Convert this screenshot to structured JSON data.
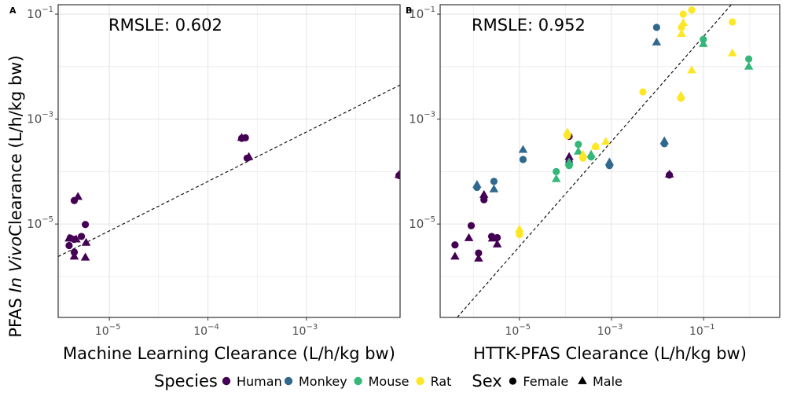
{
  "figure": {
    "y_label_prefix": "PFAS ",
    "y_label_italic": "In Vivo",
    "y_label_suffix": "Clearance (L/h/kg bw)"
  },
  "legend": {
    "species_title": "Species",
    "species": [
      {
        "label": "Human",
        "color": "#440154"
      },
      {
        "label": "Monkey",
        "color": "#31688e"
      },
      {
        "label": "Mouse",
        "color": "#35b779"
      },
      {
        "label": "Rat",
        "color": "#fde725"
      }
    ],
    "sex_title": "Sex",
    "sex": [
      {
        "label": "Female",
        "shape": "circle"
      },
      {
        "label": "Male",
        "shape": "triangle"
      }
    ]
  },
  "chart_data": [
    {
      "type": "scatter",
      "panel": "A",
      "annotation": "RMSLE: 0.602",
      "xlabel": "Machine Learning Clearance (L/h/kg bw)",
      "xscale": "log10",
      "yscale": "log10",
      "xlim_log10": [
        -5.52,
        -2.05
      ],
      "ylim_log10": [
        -6.78,
        -0.82
      ],
      "x_ticks": [
        "10^-5",
        "10^-4",
        "10^-3"
      ],
      "y_ticks": [
        "10^-5",
        "10^-3",
        "10^-1"
      ],
      "grid": true,
      "fit_line_log10": {
        "x": [
          -5.52,
          -2.05
        ],
        "y": [
          -5.62,
          -2.35
        ]
      },
      "points": [
        {
          "x": 4e-06,
          "y": 5.4e-06,
          "species": "Human",
          "sex": "Female"
        },
        {
          "x": 4.4e-06,
          "y": 5.1e-06,
          "species": "Human",
          "sex": "Female"
        },
        {
          "x": 3.9e-06,
          "y": 3.9e-06,
          "species": "Human",
          "sex": "Female"
        },
        {
          "x": 4.4e-06,
          "y": 2.9e-06,
          "species": "Human",
          "sex": "Female"
        },
        {
          "x": 5.2e-06,
          "y": 5.8e-06,
          "species": "Human",
          "sex": "Female"
        },
        {
          "x": 5.7e-06,
          "y": 9.8e-06,
          "species": "Human",
          "sex": "Female"
        },
        {
          "x": 4.4e-06,
          "y": 2.8e-05,
          "species": "Human",
          "sex": "Female"
        },
        {
          "x": 0.00022,
          "y": 0.00043,
          "species": "Human",
          "sex": "Female"
        },
        {
          "x": 0.00024,
          "y": 0.00044,
          "species": "Human",
          "sex": "Female"
        },
        {
          "x": 0.0087,
          "y": 8.4e-05,
          "species": "Human",
          "sex": "Female"
        },
        {
          "x": 0.00025,
          "y": 0.00018,
          "species": "Human",
          "sex": "Female"
        },
        {
          "x": 3.9e-06,
          "y": 5.3e-06,
          "species": "Human",
          "sex": "Male"
        },
        {
          "x": 4.6e-06,
          "y": 5.1e-06,
          "species": "Human",
          "sex": "Male"
        },
        {
          "x": 4.4e-06,
          "y": 2.4e-06,
          "species": "Human",
          "sex": "Male"
        },
        {
          "x": 5.7e-06,
          "y": 2.3e-06,
          "species": "Human",
          "sex": "Male"
        },
        {
          "x": 5.8e-06,
          "y": 4.4e-06,
          "species": "Human",
          "sex": "Male"
        },
        {
          "x": 4.8e-06,
          "y": 3.3e-05,
          "species": "Human",
          "sex": "Male"
        },
        {
          "x": 0.00022,
          "y": 0.00044,
          "species": "Human",
          "sex": "Male"
        },
        {
          "x": 0.00026,
          "y": 0.00019,
          "species": "Human",
          "sex": "Male"
        },
        {
          "x": 0.0087,
          "y": 8.6e-05,
          "species": "Human",
          "sex": "Male"
        }
      ]
    },
    {
      "type": "scatter",
      "panel": "B",
      "annotation": "RMSLE: 0.952",
      "xlabel": "HTTK-PFAS Clearance (L/h/kg bw)",
      "xscale": "log10",
      "yscale": "log10",
      "xlim_log10": [
        -6.72,
        0.65
      ],
      "ylim_log10": [
        -6.78,
        -0.82
      ],
      "x_ticks": [
        "10^-5",
        "10^-3",
        "10^-1"
      ],
      "y_ticks": [
        "10^-5",
        "10^-3",
        "10^-1"
      ],
      "grid": true,
      "fit_line_log10": {
        "x": [
          -6.35,
          -0.4
        ],
        "y": [
          -6.78,
          -0.82
        ]
      },
      "points": [
        {
          "x": 4e-07,
          "y": 4e-06,
          "species": "Human",
          "sex": "Female"
        },
        {
          "x": 9e-07,
          "y": 9.3e-06,
          "species": "Human",
          "sex": "Female"
        },
        {
          "x": 1.3e-06,
          "y": 2.8e-06,
          "species": "Human",
          "sex": "Female"
        },
        {
          "x": 1.7e-06,
          "y": 2.9e-05,
          "species": "Human",
          "sex": "Female"
        },
        {
          "x": 2.5e-06,
          "y": 5.8e-06,
          "species": "Human",
          "sex": "Female"
        },
        {
          "x": 3.3e-06,
          "y": 5.5e-06,
          "species": "Human",
          "sex": "Female"
        },
        {
          "x": 0.00012,
          "y": 0.00047,
          "species": "Human",
          "sex": "Female"
        },
        {
          "x": 0.018,
          "y": 8.6e-05,
          "species": "Human",
          "sex": "Female"
        },
        {
          "x": 0.00012,
          "y": 0.00015,
          "species": "Human",
          "sex": "Female"
        },
        {
          "x": 4e-07,
          "y": 2.4e-06,
          "species": "Human",
          "sex": "Male"
        },
        {
          "x": 8e-07,
          "y": 5.4e-06,
          "species": "Human",
          "sex": "Male"
        },
        {
          "x": 1.3e-06,
          "y": 2.2e-06,
          "species": "Human",
          "sex": "Male"
        },
        {
          "x": 1.7e-06,
          "y": 3.6e-05,
          "species": "Human",
          "sex": "Male"
        },
        {
          "x": 2.6e-06,
          "y": 5.3e-06,
          "species": "Human",
          "sex": "Male"
        },
        {
          "x": 3.3e-06,
          "y": 4.1e-06,
          "species": "Human",
          "sex": "Male"
        },
        {
          "x": 0.00012,
          "y": 0.00019,
          "species": "Human",
          "sex": "Male"
        },
        {
          "x": 0.018,
          "y": 8.8e-05,
          "species": "Human",
          "sex": "Male"
        },
        {
          "x": 1.2e-06,
          "y": 5e-05,
          "species": "Monkey",
          "sex": "Female"
        },
        {
          "x": 2.8e-06,
          "y": 6.5e-05,
          "species": "Monkey",
          "sex": "Female"
        },
        {
          "x": 1.2e-05,
          "y": 0.00017,
          "species": "Monkey",
          "sex": "Female"
        },
        {
          "x": 0.0009,
          "y": 0.00013,
          "species": "Monkey",
          "sex": "Female"
        },
        {
          "x": 0.014,
          "y": 0.00034,
          "species": "Monkey",
          "sex": "Female"
        },
        {
          "x": 0.0095,
          "y": 0.056,
          "species": "Monkey",
          "sex": "Female"
        },
        {
          "x": 1.2e-06,
          "y": 5.6e-05,
          "species": "Monkey",
          "sex": "Male"
        },
        {
          "x": 2.8e-06,
          "y": 4.6e-05,
          "species": "Monkey",
          "sex": "Male"
        },
        {
          "x": 1.2e-05,
          "y": 0.00026,
          "species": "Monkey",
          "sex": "Male"
        },
        {
          "x": 0.0009,
          "y": 0.00015,
          "species": "Monkey",
          "sex": "Male"
        },
        {
          "x": 0.014,
          "y": 0.00038,
          "species": "Monkey",
          "sex": "Male"
        },
        {
          "x": 0.0095,
          "y": 0.029,
          "species": "Monkey",
          "sex": "Male"
        },
        {
          "x": 6.3e-05,
          "y": 0.0001,
          "species": "Mouse",
          "sex": "Female"
        },
        {
          "x": 0.00012,
          "y": 0.00013,
          "species": "Mouse",
          "sex": "Female"
        },
        {
          "x": 0.00019,
          "y": 0.00033,
          "species": "Mouse",
          "sex": "Female"
        },
        {
          "x": 0.00036,
          "y": 0.00019,
          "species": "Mouse",
          "sex": "Female"
        },
        {
          "x": 0.098,
          "y": 0.033,
          "species": "Mouse",
          "sex": "Female"
        },
        {
          "x": 0.95,
          "y": 0.014,
          "species": "Mouse",
          "sex": "Female"
        },
        {
          "x": 6.3e-05,
          "y": 7.2e-05,
          "species": "Mouse",
          "sex": "Male"
        },
        {
          "x": 0.00012,
          "y": 0.00015,
          "species": "Mouse",
          "sex": "Male"
        },
        {
          "x": 0.00019,
          "y": 0.00024,
          "species": "Mouse",
          "sex": "Male"
        },
        {
          "x": 0.00036,
          "y": 0.00021,
          "species": "Mouse",
          "sex": "Male"
        },
        {
          "x": 0.098,
          "y": 0.027,
          "species": "Mouse",
          "sex": "Male"
        },
        {
          "x": 0.95,
          "y": 0.01,
          "species": "Mouse",
          "sex": "Male"
        },
        {
          "x": 1e-05,
          "y": 6.3e-06,
          "species": "Rat",
          "sex": "Female"
        },
        {
          "x": 0.00011,
          "y": 0.00048,
          "species": "Rat",
          "sex": "Female"
        },
        {
          "x": 0.00024,
          "y": 0.00018,
          "species": "Rat",
          "sex": "Female"
        },
        {
          "x": 0.00045,
          "y": 0.0003,
          "species": "Rat",
          "sex": "Female"
        },
        {
          "x": 0.0048,
          "y": 0.0033,
          "species": "Rat",
          "sex": "Female"
        },
        {
          "x": 0.055,
          "y": 0.12,
          "species": "Rat",
          "sex": "Female"
        },
        {
          "x": 0.033,
          "y": 0.056,
          "species": "Rat",
          "sex": "Female"
        },
        {
          "x": 0.036,
          "y": 0.1,
          "species": "Rat",
          "sex": "Female"
        },
        {
          "x": 0.032,
          "y": 0.0025,
          "species": "Rat",
          "sex": "Female"
        },
        {
          "x": 0.42,
          "y": 0.071,
          "species": "Rat",
          "sex": "Female"
        },
        {
          "x": 1e-05,
          "y": 7.9e-06,
          "species": "Rat",
          "sex": "Male"
        },
        {
          "x": 0.00011,
          "y": 0.00056,
          "species": "Rat",
          "sex": "Male"
        },
        {
          "x": 0.00024,
          "y": 0.00021,
          "species": "Rat",
          "sex": "Male"
        },
        {
          "x": 0.00045,
          "y": 0.0003,
          "species": "Rat",
          "sex": "Male"
        },
        {
          "x": 0.00075,
          "y": 0.00037,
          "species": "Rat",
          "sex": "Male"
        },
        {
          "x": 0.055,
          "y": 0.0085,
          "species": "Rat",
          "sex": "Male"
        },
        {
          "x": 0.033,
          "y": 0.042,
          "species": "Rat",
          "sex": "Male"
        },
        {
          "x": 0.036,
          "y": 0.068,
          "species": "Rat",
          "sex": "Male"
        },
        {
          "x": 0.032,
          "y": 0.0028,
          "species": "Rat",
          "sex": "Male"
        },
        {
          "x": 0.42,
          "y": 0.018,
          "species": "Rat",
          "sex": "Male"
        }
      ]
    }
  ]
}
